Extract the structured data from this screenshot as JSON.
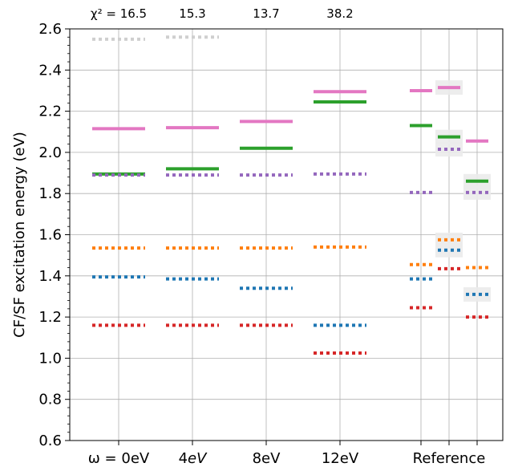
{
  "chart_data": {
    "type": "scatter",
    "ylabel": "CF/SF excitation energy (eV)",
    "ylim": [
      0.6,
      2.6
    ],
    "yticks": [
      "0.6",
      "0.8",
      "1.0",
      "1.2",
      "1.4",
      "1.6",
      "1.8",
      "2.0",
      "2.2",
      "2.4",
      "2.6"
    ],
    "grid": true,
    "categories": [
      {
        "label_prefix": "ω = ",
        "label_suffix": "0eV",
        "chi2": "χ² = 16.5"
      },
      {
        "label_prefix": "4",
        "label_suffix": "eV",
        "italic_suffix": true,
        "chi2": "15.3"
      },
      {
        "label_prefix": "8eV",
        "label_suffix": "",
        "chi2": "13.7"
      },
      {
        "label_prefix": "12eV",
        "label_suffix": "",
        "chi2": "38.2"
      },
      {
        "label_prefix": "Reference",
        "label_suffix": "",
        "chi2": ""
      }
    ],
    "colors": {
      "gray": "#cfcfcf",
      "pink": "#e377c2",
      "green": "#2ca02c",
      "purple": "#9467bd",
      "orange": "#ff7f0e",
      "blue": "#1f77b4",
      "red": "#d62728"
    },
    "series": [
      {
        "color": "gray",
        "style": "dotted",
        "values": [
          2.55,
          2.56,
          null,
          null
        ]
      },
      {
        "color": "pink",
        "style": "solid",
        "values": [
          2.115,
          2.12,
          2.15,
          2.295
        ]
      },
      {
        "color": "green",
        "style": "solid",
        "values": [
          1.895,
          1.92,
          2.02,
          2.245
        ]
      },
      {
        "color": "purple",
        "style": "dotted",
        "values": [
          1.89,
          1.89,
          1.89,
          1.895
        ]
      },
      {
        "color": "orange",
        "style": "dotted",
        "values": [
          1.535,
          1.535,
          1.535,
          1.54
        ]
      },
      {
        "color": "blue",
        "style": "dotted",
        "values": [
          1.395,
          1.385,
          1.34,
          1.16
        ]
      },
      {
        "color": "red",
        "style": "dotted",
        "values": [
          1.16,
          1.16,
          1.16,
          1.025
        ]
      }
    ],
    "reference": [
      {
        "color": "pink",
        "style": "solid",
        "values": [
          2.3,
          2.315,
          2.055
        ]
      },
      {
        "color": "green",
        "style": "solid",
        "values": [
          2.13,
          2.075,
          1.86
        ]
      },
      {
        "color": "purple",
        "style": "dotted",
        "values": [
          1.805,
          2.015,
          1.805
        ]
      },
      {
        "color": "orange",
        "style": "dotted",
        "values": [
          1.455,
          1.575,
          1.44
        ]
      },
      {
        "color": "blue",
        "style": "dotted",
        "values": [
          1.385,
          1.525,
          1.31
        ]
      },
      {
        "color": "red",
        "style": "dotted",
        "values": [
          1.245,
          1.435,
          1.2
        ]
      }
    ],
    "reference_shading": [
      [],
      [
        2.315,
        2.075,
        2.015,
        1.575,
        1.525
      ],
      [
        1.86,
        1.805,
        1.31
      ]
    ]
  }
}
